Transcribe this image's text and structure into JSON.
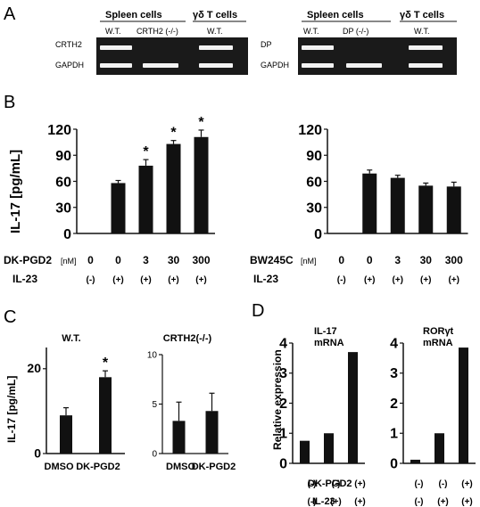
{
  "panels": {
    "A": "A",
    "B": "B",
    "C": "C",
    "D": "D"
  },
  "panelA": {
    "left": {
      "header1": "Spleen cells",
      "header2": "γδ T cells",
      "col1": "W.T.",
      "col2": "CRTH2 (-/-)",
      "col3": "W.T.",
      "row1": "CRTH2",
      "row2": "GAPDH"
    },
    "right": {
      "header1": "Spleen cells",
      "header2": "γδ T cells",
      "col1": "W.T.",
      "col2": "DP (-/-)",
      "col3": "W.T.",
      "row1": "DP",
      "row2": "GAPDH"
    },
    "band_color": "#f2f2f2",
    "gel_color": "#1a1a1a"
  },
  "chart_data": [
    {
      "id": "B-left",
      "type": "bar",
      "ylabel": "IL-17 [pg/mL]",
      "ylim": [
        0,
        120
      ],
      "yticks": [
        "0",
        "30",
        "60",
        "90",
        "120"
      ],
      "treatment_label": "DK-PGD2",
      "unit": "[nM]",
      "il23_label": "IL-23",
      "categories": [
        "0",
        "0",
        "3",
        "30",
        "300"
      ],
      "il23": [
        "(-)",
        "(+)",
        "(+)",
        "(+)",
        "(+)"
      ],
      "values": [
        0,
        58,
        78,
        103,
        111
      ],
      "errors": [
        0,
        3,
        7,
        4,
        8
      ],
      "significant": [
        "",
        "",
        "*",
        "*",
        "*"
      ]
    },
    {
      "id": "B-right",
      "type": "bar",
      "ylim": [
        0,
        120
      ],
      "yticks": [
        "0",
        "30",
        "60",
        "90",
        "120"
      ],
      "treatment_label": "BW245C",
      "unit": "[nM]",
      "il23_label": "IL-23",
      "categories": [
        "0",
        "0",
        "3",
        "30",
        "300"
      ],
      "il23": [
        "(-)",
        "(+)",
        "(+)",
        "(+)",
        "(+)"
      ],
      "values": [
        0,
        69,
        64,
        55,
        54
      ],
      "errors": [
        0,
        4,
        3,
        3,
        5
      ]
    },
    {
      "id": "C-left",
      "type": "bar",
      "title": "W.T.",
      "ylabel": "IL-17 [pg/mL]",
      "ylim": [
        0,
        25
      ],
      "yticks": [
        "0",
        "20"
      ],
      "categories": [
        "DMSO",
        "DK-PGD2"
      ],
      "values": [
        9,
        18
      ],
      "errors": [
        1.8,
        1.5
      ],
      "significant": [
        "",
        "*"
      ]
    },
    {
      "id": "C-right",
      "type": "bar",
      "title": "CRTH2(-/-)",
      "ylim": [
        0,
        10
      ],
      "yticks": [
        "0",
        "5",
        "10"
      ],
      "categories": [
        "DMSO",
        "DK-PGD2"
      ],
      "values": [
        3.3,
        4.3
      ],
      "errors": [
        1.9,
        1.8
      ]
    },
    {
      "id": "D-left",
      "type": "bar",
      "title": "IL-17 mRNA",
      "ylabel": "Relative expression",
      "ylim": [
        0,
        4
      ],
      "yticks": [
        "0",
        "1",
        "2",
        "3",
        "4"
      ],
      "values": [
        0.75,
        1.0,
        3.7
      ],
      "dkpgd2": [
        "(-)",
        "(-)",
        "(+)"
      ],
      "il23": [
        "(-)",
        "(+)",
        "(+)"
      ],
      "dkpgd2_label": "DK-PGD2",
      "il23_label": "IL-23"
    },
    {
      "id": "D-right",
      "type": "bar",
      "title": "RORγt mRNA",
      "ylim": [
        0,
        4
      ],
      "yticks": [
        "0",
        "1",
        "2",
        "3",
        "4"
      ],
      "values": [
        0.12,
        1.0,
        3.85
      ],
      "dkpgd2": [
        "(-)",
        "(-)",
        "(+)"
      ],
      "il23": [
        "(-)",
        "(+)",
        "(+)"
      ]
    }
  ]
}
